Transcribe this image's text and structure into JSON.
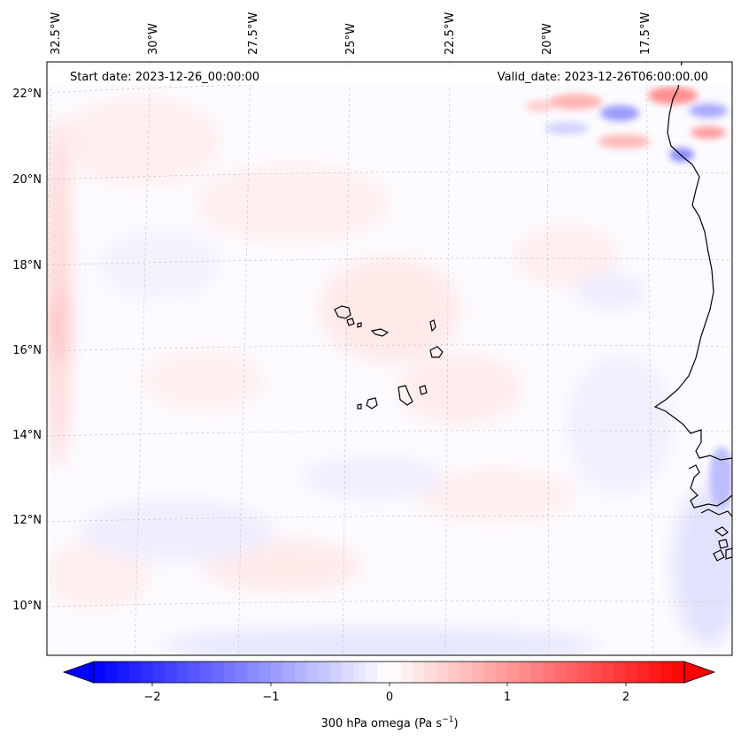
{
  "map": {
    "start_date": "Start date: 2023-12-26_00:00:00",
    "valid_date": "Valid_date: 2023-12-26T06:00:00.00",
    "lon_labels": [
      "32.5°W",
      "30°W",
      "27.5°W",
      "25°W",
      "22.5°W",
      "20°W",
      "17.5°W"
    ],
    "lat_labels": [
      "22°N",
      "20°N",
      "18°N",
      "16°N",
      "14°N",
      "12°N",
      "10°N"
    ],
    "gridlines": "dashed",
    "field": "300 hPa omega",
    "colormap": "bwr"
  },
  "colorbar": {
    "ticks": [
      "−2",
      "−1",
      "0",
      "1",
      "2"
    ],
    "label_main": "300 hPa omega (Pa s",
    "label_sup": "−1",
    "label_end": ")",
    "extend": "both",
    "colors": {
      "min": "#0000ff",
      "mid": "#ffffff",
      "max": "#ff0000"
    }
  }
}
